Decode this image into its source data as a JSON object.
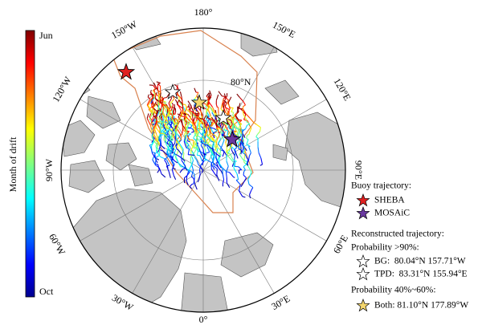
{
  "colorbar": {
    "title": "Month of drift",
    "top_label": "Jun",
    "bottom_label": "Oct"
  },
  "map": {
    "meridian_labels": [
      "180°",
      "150°E",
      "120°E",
      "90°E",
      "60°E",
      "30°E",
      "0°",
      "30°W",
      "60°W",
      "90°W",
      "120°W",
      "150°W"
    ],
    "parallel_label": "80°N"
  },
  "legend": {
    "buoy_heading": "Buoy trajectory:",
    "sheba": "SHEBA",
    "mosaic": "MOSAiC",
    "reconstructed_heading": "Reconstructed trajectory:",
    "prob_high": "Probability >90%:",
    "bg": "BG:  80.04°N 157.71°W",
    "tpd": "TPD:  83.31°N 155.94°E",
    "prob_mid": "Probability 40%~60%:",
    "both": "Both: 81.10°N 177.89°W"
  }
}
